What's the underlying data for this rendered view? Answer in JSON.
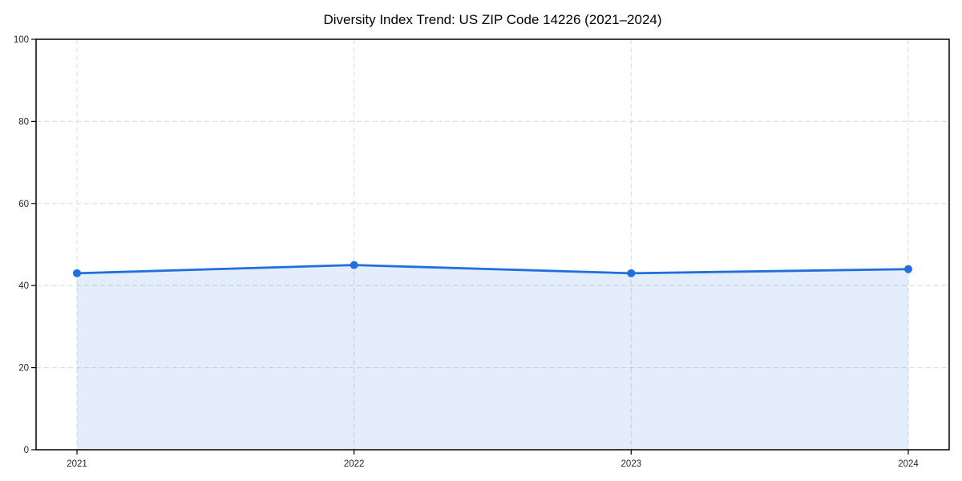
{
  "chart_data": {
    "type": "line",
    "title": "Diversity Index Trend: US ZIP Code 14226 (2021–2024)",
    "categories": [
      "2021",
      "2022",
      "2023",
      "2024"
    ],
    "series": [
      {
        "name": "Diversity Index",
        "values": [
          43,
          45,
          43,
          44
        ]
      }
    ],
    "xlabel": "",
    "ylabel": "",
    "ylim": [
      0,
      100
    ],
    "yticks": [
      0,
      20,
      40,
      60,
      80,
      100
    ],
    "grid": true,
    "grid_style": "dashed",
    "legend_position": "none",
    "marker": "circle",
    "area_fill": true,
    "colors": {
      "line": "#1f6fdd",
      "area_fill_base": "#1f6fdd",
      "grid": "#dedede",
      "axis": "#000000",
      "tick_text": "#262626",
      "title_text": "#000000",
      "background": "#ffffff"
    }
  }
}
